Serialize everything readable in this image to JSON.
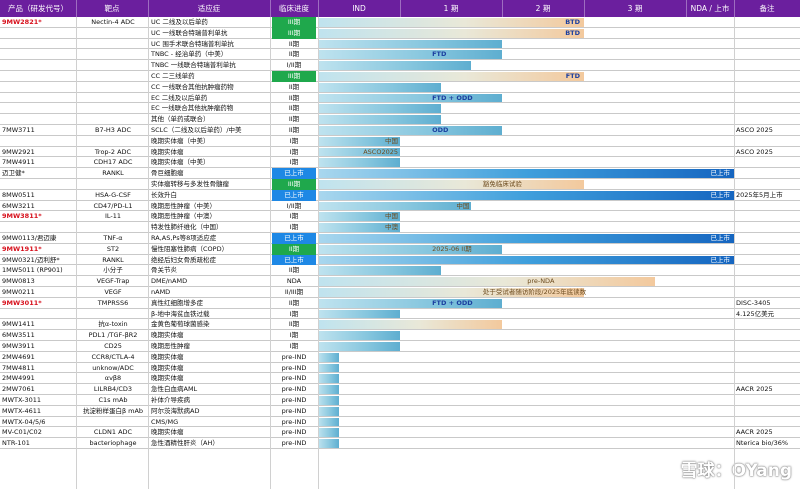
{
  "header": {
    "columns": [
      "产品（研发代号）",
      "靶点",
      "适应症",
      "临床进度",
      "IND",
      "1 期",
      "2 期",
      "3 期",
      "NDA / 上市",
      "备注"
    ]
  },
  "rows": [
    {
      "prod": "9MW2821*",
      "red": true,
      "tgt": "Nectin-4 ADC",
      "ind": "UC 二线及以后单药",
      "ph": "III期",
      "phc": "green",
      "bar": "orange",
      "end": 3,
      "label": "BTD"
    },
    {
      "prod": "",
      "tgt": "",
      "ind": "UC 一线联合特瑞普利单抗",
      "ph": "III期",
      "phc": "green",
      "bar": "orange",
      "end": 3,
      "label": "BTD"
    },
    {
      "prod": "",
      "tgt": "",
      "ind": "UC 围手术联合特瑞普利单抗",
      "ph": "II期",
      "bar": "blue",
      "end": 2
    },
    {
      "prod": "",
      "tgt": "",
      "ind": "TNBC - 经治单药（中美）",
      "ph": "II期",
      "bar": "blue",
      "end": 2,
      "label": "FTD"
    },
    {
      "prod": "",
      "tgt": "",
      "ind": "TNBC 一线联合特瑞普利单抗",
      "ph": "I/II期",
      "bar": "blue",
      "end": 1.7
    },
    {
      "prod": "",
      "tgt": "",
      "ind": "CC 二三线单药",
      "ph": "III期",
      "phc": "green",
      "bar": "orange",
      "end": 3,
      "label": "FTD"
    },
    {
      "prod": "",
      "tgt": "",
      "ind": "CC 一线联合其他抗肿瘤药物",
      "ph": "II期",
      "bar": "blue",
      "end": 1.4
    },
    {
      "prod": "",
      "tgt": "",
      "ind": "EC 二线及以后单药",
      "ph": "II期",
      "bar": "blue",
      "end": 2,
      "label": "FTD + ODD"
    },
    {
      "prod": "",
      "tgt": "",
      "ind": "EC 一线联合其他抗肿瘤药物",
      "ph": "II期",
      "bar": "blue",
      "end": 1.4
    },
    {
      "prod": "",
      "tgt": "",
      "ind": "其他（单药或联合）",
      "ph": "II期",
      "bar": "blue",
      "end": 1.4
    },
    {
      "prod": "7MW3711",
      "tgt": "B7-H3 ADC",
      "ind": "SCLC（二线及以后单药）/中美",
      "ph": "II期",
      "bar": "blue",
      "end": 2,
      "label": "ODD",
      "note": "ASCO 2025"
    },
    {
      "prod": "",
      "tgt": "",
      "ind": "晚期实体瘤（中美）",
      "ph": "I期",
      "bar": "blue",
      "end": 1,
      "label": "中国",
      "lstyle": "mid"
    },
    {
      "prod": "9MW2921",
      "tgt": "Trop-2 ADC",
      "ind": "晚期实体瘤",
      "ph": "I期",
      "bar": "blue",
      "end": 1,
      "label": "ASCO2025",
      "lstyle": "mid",
      "note": "ASCO 2025"
    },
    {
      "prod": "7MW4911",
      "tgt": "CDH17 ADC",
      "ind": "晚期实体瘤（中美）",
      "ph": "I期",
      "bar": "blue",
      "end": 1
    },
    {
      "prod": "迈卫健*",
      "tgt": "RANKL",
      "ind": "骨巨细胞瘤",
      "ph": "已上市",
      "phc": "blue",
      "bar": "market",
      "end": 4,
      "label": "已上市",
      "lstyle": "white"
    },
    {
      "prod": "",
      "tgt": "",
      "ind": "实体瘤转移与多发性骨髓瘤",
      "ph": "III期",
      "phc": "green",
      "bar": "orange",
      "end": 3,
      "label": "豁免临床试验",
      "lstyle": "mid"
    },
    {
      "prod": "8MW0511",
      "tgt": "HSA-G-CSF",
      "ind": "长效升白",
      "ph": "已上市",
      "phc": "blue",
      "bar": "market",
      "end": 4,
      "label": "已上市",
      "lstyle": "white",
      "note": "2025年5月上市"
    },
    {
      "prod": "6MW3211",
      "tgt": "CD47/PD-L1",
      "ind": "晚期恶性肿瘤（中美）",
      "ph": "I/II期",
      "bar": "blue",
      "end": 1.7,
      "label": "中国",
      "lstyle": "mid"
    },
    {
      "prod": "9MW3811*",
      "red": true,
      "tgt": "IL-11",
      "ind": "晚期恶性肿瘤（中澳）",
      "ph": "I期",
      "bar": "blue",
      "end": 1,
      "label": "中国",
      "lstyle": "mid"
    },
    {
      "prod": "",
      "tgt": "",
      "ind": "特发性肺纤维化（中国）",
      "ph": "I期",
      "bar": "blue",
      "end": 1,
      "label": "中澳",
      "lstyle": "mid"
    },
    {
      "prod": "9MW0113/君迈康",
      "tgt": "TNF-α",
      "ind": "RA,AS,Ps等8项适应症",
      "ph": "已上市",
      "phc": "blue",
      "bar": "market",
      "end": 4,
      "label": "已上市",
      "lstyle": "white"
    },
    {
      "prod": "9MW1911*",
      "red": true,
      "tgt": "ST2",
      "ind": "慢性阻塞性肺病（COPD）",
      "ph": "II期",
      "phc": "green",
      "bar": "blue",
      "end": 2,
      "label": "2025-06 II期",
      "lstyle": "mid"
    },
    {
      "prod": "9MW0321/迈利舒*",
      "tgt": "RANKL",
      "ind": "绝经后妇女骨质疏松症",
      "ph": "已上市",
      "phc": "blue",
      "bar": "market",
      "end": 4,
      "label": "已上市",
      "lstyle": "white"
    },
    {
      "prod": "1MW5011 (RP901)",
      "tgt": "小分子",
      "ind": "骨关节炎",
      "ph": "II期",
      "bar": "blue",
      "end": 1.4
    },
    {
      "prod": "9MW0813",
      "tgt": "VEGF-Trap",
      "ind": "DME/nAMD",
      "ph": "NDA",
      "bar": "orange",
      "end": 3.7,
      "label": "pre-NDA",
      "lstyle": "mid"
    },
    {
      "prod": "9MW0211",
      "tgt": "VEGF",
      "ind": "nAMD",
      "ph": "II/III期",
      "bar": "orange",
      "end": 3,
      "label": "处于受试者随访阶段/2025年底读数",
      "lstyle": "mid"
    },
    {
      "prod": "9MW3011*",
      "red": true,
      "tgt": "TMPRSS6",
      "ind": "真性红细胞增多症",
      "ph": "II期",
      "bar": "blue",
      "end": 2,
      "label": "FTD + ODD",
      "note": "DISC-3405"
    },
    {
      "prod": "",
      "tgt": "",
      "ind": "β-地中海贫血铁过载",
      "ph": "I期",
      "bar": "blue",
      "end": 1,
      "note": "4.125亿美元"
    },
    {
      "prod": "9MW1411",
      "tgt": "抗α-toxin",
      "ind": "金黄色葡萄球菌感染",
      "ph": "II期",
      "bar": "orange",
      "end": 2
    },
    {
      "prod": "6MW3511",
      "tgt": "PDL1 /TGF-βR2",
      "ind": "晚期实体瘤",
      "ph": "I期",
      "bar": "blue",
      "end": 1
    },
    {
      "prod": "9MW3911",
      "tgt": "CD25",
      "ind": "晚期恶性肿瘤",
      "ph": "I期",
      "bar": "blue",
      "end": 1
    },
    {
      "prod": "2MW4691",
      "tgt": "CCR8/CTLA-4",
      "ind": "晚期实体瘤",
      "ph": "pre-IND",
      "bar": "blue",
      "end": 0.25
    },
    {
      "prod": "7MW4811",
      "tgt": "unknow/ADC",
      "ind": "晚期实体瘤",
      "ph": "pre-IND",
      "bar": "blue",
      "end": 0.25
    },
    {
      "prod": "2MW4991",
      "tgt": "αvβ8",
      "ind": "晚期实体瘤",
      "ph": "pre-IND",
      "bar": "blue",
      "end": 0.25
    },
    {
      "prod": "2MW7061",
      "tgt": "LILRB4/CD3",
      "ind": "急性白血病AML",
      "ph": "pre-IND",
      "bar": "blue",
      "end": 0.25,
      "note": "AACR 2025"
    },
    {
      "prod": "MWTX-3011",
      "tgt": "C1s mAb",
      "ind": "补体介导疾病",
      "ph": "pre-IND",
      "bar": "blue",
      "end": 0.25
    },
    {
      "prod": "MWTX-4611",
      "tgt": "抗淀粉样蛋白β mAb",
      "ind": "阿尔茨海默病AD",
      "ph": "pre-IND",
      "bar": "blue",
      "end": 0.25
    },
    {
      "prod": "MWTX-04/5/6",
      "tgt": "",
      "ind": "CMS/MG",
      "ph": "pre-IND",
      "bar": "blue",
      "end": 0.25
    },
    {
      "prod": "MV-C01/C02",
      "tgt": "CLDN1 ADC",
      "ind": "晚期实体瘤",
      "ph": "pre-IND",
      "bar": "blue",
      "end": 0.25,
      "note": "AACR 2025"
    },
    {
      "prod": "NTR-101",
      "tgt": "bacteriophage",
      "ind": "急性酒精性肝炎（AH）",
      "ph": "pre-IND",
      "bar": "blue",
      "end": 0.25,
      "note": "Nterica bio/36%"
    }
  ],
  "watermark": "雪球：OYang",
  "colors": {
    "header": "#6b1f9e",
    "red": "#d7101c",
    "green": "#1fa84c",
    "blue": "#1e88e5",
    "label": "#1b3fa0"
  }
}
